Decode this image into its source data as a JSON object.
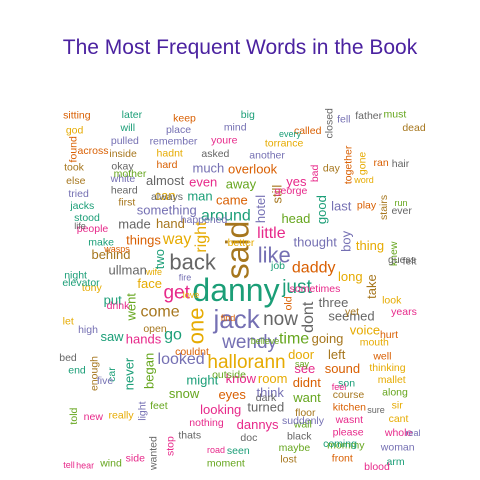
{
  "chart_data": {
    "type": "wordcloud",
    "title": "The Most Frequent Words in the Book",
    "colors": [
      "#1b9e77",
      "#d95f02",
      "#7570b3",
      "#e7298a",
      "#66a61e",
      "#e6ab02",
      "#a6761d",
      "#666666"
    ],
    "words": [
      {
        "text": "danny",
        "level": 8
      },
      {
        "text": "jack",
        "level": 7
      },
      {
        "text": "said",
        "level": 8
      },
      {
        "text": "back",
        "level": 6
      },
      {
        "text": "like",
        "level": 6
      },
      {
        "text": "one",
        "level": 6
      },
      {
        "text": "now",
        "level": 5
      },
      {
        "text": "wendy",
        "level": 5
      },
      {
        "text": "hallorann",
        "level": 5
      },
      {
        "text": "just",
        "level": 5
      },
      {
        "text": "get",
        "level": 5
      },
      {
        "text": "right",
        "level": 4
      },
      {
        "text": "around",
        "level": 4
      },
      {
        "text": "little",
        "level": 4
      },
      {
        "text": "come",
        "level": 4
      },
      {
        "text": "daddy",
        "level": 4
      },
      {
        "text": "time",
        "level": 4
      },
      {
        "text": "dont",
        "level": 4
      },
      {
        "text": "looked",
        "level": 4
      },
      {
        "text": "way",
        "level": 4
      },
      {
        "text": "go",
        "level": 4
      },
      {
        "text": "thought",
        "level": 3
      },
      {
        "text": "face",
        "level": 3
      },
      {
        "text": "two",
        "level": 3
      },
      {
        "text": "know",
        "level": 3
      },
      {
        "text": "hand",
        "level": 3
      },
      {
        "text": "came",
        "level": 3
      },
      {
        "text": "head",
        "level": 3
      },
      {
        "text": "three",
        "level": 3
      },
      {
        "text": "hotel",
        "level": 3
      },
      {
        "text": "door",
        "level": 3
      },
      {
        "text": "might",
        "level": 3
      },
      {
        "text": "hands",
        "level": 3
      },
      {
        "text": "going",
        "level": 3
      },
      {
        "text": "things",
        "level": 3
      },
      {
        "text": "went",
        "level": 3
      },
      {
        "text": "ullman",
        "level": 3
      },
      {
        "text": "something",
        "level": 3
      },
      {
        "text": "room",
        "level": 3
      },
      {
        "text": "man",
        "level": 3
      },
      {
        "text": "see",
        "level": 3
      },
      {
        "text": "still",
        "level": 3
      },
      {
        "text": "eyes",
        "level": 3
      },
      {
        "text": "away",
        "level": 3
      },
      {
        "text": "seemed",
        "level": 3
      },
      {
        "text": "think",
        "level": 3
      },
      {
        "text": "long",
        "level": 3
      },
      {
        "text": "good",
        "level": 3
      },
      {
        "text": "even",
        "level": 3
      },
      {
        "text": "left",
        "level": 3
      },
      {
        "text": "didnt",
        "level": 3
      },
      {
        "text": "snow",
        "level": 3
      },
      {
        "text": "made",
        "level": 3
      },
      {
        "text": "boy",
        "level": 3
      },
      {
        "text": "can",
        "level": 3
      },
      {
        "text": "put",
        "level": 3
      },
      {
        "text": "looking",
        "level": 3
      },
      {
        "text": "behind",
        "level": 3
      },
      {
        "text": "overlook",
        "level": 3
      },
      {
        "text": "began",
        "level": 3
      },
      {
        "text": "turned",
        "level": 3
      },
      {
        "text": "much",
        "level": 3
      },
      {
        "text": "voice",
        "level": 3
      },
      {
        "text": "saw",
        "level": 3
      },
      {
        "text": "yes",
        "level": 3
      },
      {
        "text": "take",
        "level": 3
      },
      {
        "text": "sound",
        "level": 3
      },
      {
        "text": "want",
        "level": 3
      },
      {
        "text": "almost",
        "level": 3
      },
      {
        "text": "last",
        "level": 3
      },
      {
        "text": "thing",
        "level": 3
      },
      {
        "text": "never",
        "level": 3
      },
      {
        "text": "dannys",
        "level": 3
      },
      {
        "text": "tony",
        "level": 2
      },
      {
        "text": "make",
        "level": 2
      },
      {
        "text": "nothing",
        "level": 2
      },
      {
        "text": "first",
        "level": 2
      },
      {
        "text": "old",
        "level": 2
      },
      {
        "text": "feet",
        "level": 2
      },
      {
        "text": "asked",
        "level": 2
      },
      {
        "text": "another",
        "level": 2
      },
      {
        "text": "mouth",
        "level": 2
      },
      {
        "text": "son",
        "level": 2
      },
      {
        "text": "bad",
        "level": 2
      },
      {
        "text": "floor",
        "level": 2
      },
      {
        "text": "hard",
        "level": 2
      },
      {
        "text": "hear",
        "level": 1
      },
      {
        "text": "heard",
        "level": 2
      },
      {
        "text": "high",
        "level": 2
      },
      {
        "text": "look",
        "level": 2
      },
      {
        "text": "car",
        "level": 2
      },
      {
        "text": "people",
        "level": 2
      },
      {
        "text": "course",
        "level": 2
      },
      {
        "text": "play",
        "level": 2
      },
      {
        "text": "wall",
        "level": 2
      },
      {
        "text": "doc",
        "level": 2
      },
      {
        "text": "light",
        "level": 2
      },
      {
        "text": "hadnt",
        "level": 2
      },
      {
        "text": "night",
        "level": 2
      },
      {
        "text": "youre",
        "level": 2
      },
      {
        "text": "day",
        "level": 2
      },
      {
        "text": "well",
        "level": 2
      },
      {
        "text": "knew",
        "level": 2
      },
      {
        "text": "thats",
        "level": 2
      },
      {
        "text": "white",
        "level": 2
      },
      {
        "text": "torrance",
        "level": 2
      },
      {
        "text": "stood",
        "level": 2
      },
      {
        "text": "years",
        "level": 2
      },
      {
        "text": "enough",
        "level": 2
      },
      {
        "text": "kitchen",
        "level": 2
      },
      {
        "text": "road",
        "level": 1
      },
      {
        "text": "black",
        "level": 2
      },
      {
        "text": "remember",
        "level": 2
      },
      {
        "text": "thinking",
        "level": 2
      },
      {
        "text": "seen",
        "level": 2
      },
      {
        "text": "fire",
        "level": 1
      },
      {
        "text": "stairs",
        "level": 2
      },
      {
        "text": "every",
        "level": 1
      },
      {
        "text": "tell",
        "level": 1
      },
      {
        "text": "okay",
        "level": 2
      },
      {
        "text": "mind",
        "level": 2
      },
      {
        "text": "really",
        "level": 2
      },
      {
        "text": "jacks",
        "level": 2
      },
      {
        "text": "wasnt",
        "level": 2
      },
      {
        "text": "word",
        "level": 1
      },
      {
        "text": "together",
        "level": 2
      },
      {
        "text": "maybe",
        "level": 2
      },
      {
        "text": "felt",
        "level": 2
      },
      {
        "text": "place",
        "level": 2
      },
      {
        "text": "mallet",
        "level": 2
      },
      {
        "text": "end",
        "level": 2
      },
      {
        "text": "stop",
        "level": 2
      },
      {
        "text": "inside",
        "level": 2
      },
      {
        "text": "called",
        "level": 2
      },
      {
        "text": "moment",
        "level": 2
      },
      {
        "text": "ever",
        "level": 2
      },
      {
        "text": "tried",
        "level": 2
      },
      {
        "text": "gone",
        "level": 2
      },
      {
        "text": "big",
        "level": 2
      },
      {
        "text": "please",
        "level": 2
      },
      {
        "text": "lost",
        "level": 2
      },
      {
        "text": "keep",
        "level": 2
      },
      {
        "text": "along",
        "level": 2
      },
      {
        "text": "wanted",
        "level": 2
      },
      {
        "text": "pulled",
        "level": 2
      },
      {
        "text": "run",
        "level": 1
      },
      {
        "text": "life",
        "level": 1
      },
      {
        "text": "new",
        "level": 2
      },
      {
        "text": "else",
        "level": 2
      },
      {
        "text": "ran",
        "level": 2
      },
      {
        "text": "mommy",
        "level": 2
      },
      {
        "text": "closed",
        "level": 2
      },
      {
        "text": "wasps",
        "level": 1
      },
      {
        "text": "sir",
        "level": 2
      },
      {
        "text": "will",
        "level": 2
      },
      {
        "text": "side",
        "level": 2
      },
      {
        "text": "took",
        "level": 2
      },
      {
        "text": "front",
        "level": 2
      },
      {
        "text": "told",
        "level": 2
      },
      {
        "text": "hair",
        "level": 2
      },
      {
        "text": "fell",
        "level": 2
      },
      {
        "text": "cant",
        "level": 2
      },
      {
        "text": "later",
        "level": 2
      },
      {
        "text": "whole",
        "level": 2
      },
      {
        "text": "wife",
        "level": 1
      },
      {
        "text": "found",
        "level": 2
      },
      {
        "text": "wind",
        "level": 2
      },
      {
        "text": "father",
        "level": 2
      },
      {
        "text": "woman",
        "level": 2
      },
      {
        "text": "god",
        "level": 2
      },
      {
        "text": "arm",
        "level": 2
      },
      {
        "text": "george",
        "level": 2
      },
      {
        "text": "love",
        "level": 1
      },
      {
        "text": "sitting",
        "level": 2
      },
      {
        "text": "must",
        "level": 2
      },
      {
        "text": "guess",
        "level": 2
      },
      {
        "text": "find",
        "level": 1
      },
      {
        "text": "believe",
        "level": 1
      },
      {
        "text": "elevator",
        "level": 2
      },
      {
        "text": "drink",
        "level": 2
      },
      {
        "text": "open",
        "level": 2
      },
      {
        "text": "couldnt",
        "level": 2
      },
      {
        "text": "outside",
        "level": 2
      },
      {
        "text": "dark",
        "level": 2
      },
      {
        "text": "suddenly",
        "level": 2
      },
      {
        "text": "say",
        "level": 1
      },
      {
        "text": "coming",
        "level": 2
      },
      {
        "text": "blood",
        "level": 2
      },
      {
        "text": "dead",
        "level": 2
      },
      {
        "text": "across",
        "level": 2
      },
      {
        "text": "mother",
        "level": 2
      },
      {
        "text": "always",
        "level": 2
      },
      {
        "text": "happened",
        "level": 2
      },
      {
        "text": "better",
        "level": 2
      },
      {
        "text": "job",
        "level": 2
      },
      {
        "text": "sometimes",
        "level": 2
      },
      {
        "text": "yet",
        "level": 2
      },
      {
        "text": "hurt",
        "level": 2
      },
      {
        "text": "feel",
        "level": 1
      },
      {
        "text": "bed",
        "level": 2
      },
      {
        "text": "five",
        "level": 2
      },
      {
        "text": "let",
        "level": 2
      },
      {
        "text": "sure",
        "level": 1
      },
      {
        "text": "real",
        "level": 1
      }
    ]
  }
}
